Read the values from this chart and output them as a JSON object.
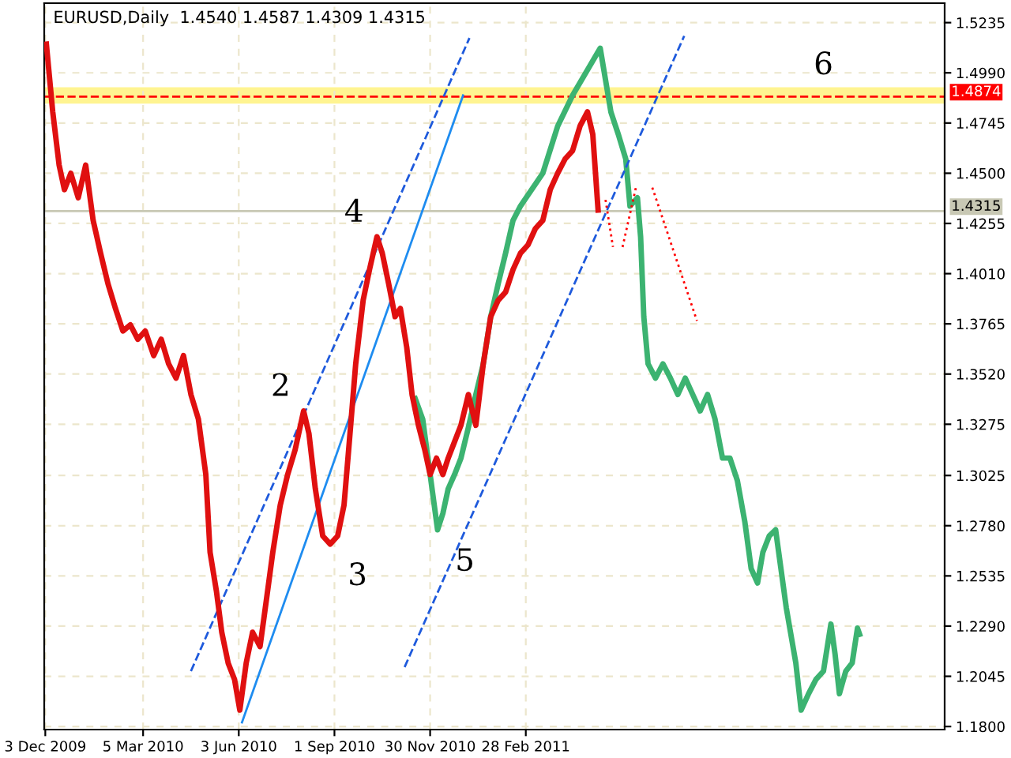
{
  "chart_data": {
    "type": "line",
    "title": "EURUSD,Daily  1.4540 1.4587 1.4309 1.4315",
    "series": [
      {
        "color": "#e01010",
        "line_style": "solid",
        "x": [
          "2009-12-04",
          "2009-12-10",
          "2009-12-16",
          "2009-12-21",
          "2009-12-27",
          "2010-01-03",
          "2010-01-10",
          "2010-01-17",
          "2010-01-24",
          "2010-01-31",
          "2010-02-07",
          "2010-02-14",
          "2010-02-21",
          "2010-02-28",
          "2010-03-07",
          "2010-03-15",
          "2010-03-22",
          "2010-03-29",
          "2010-04-05",
          "2010-04-12",
          "2010-04-19",
          "2010-04-26",
          "2010-05-03",
          "2010-05-07",
          "2010-05-13",
          "2010-05-18",
          "2010-05-24",
          "2010-05-30",
          "2010-06-04",
          "2010-06-10",
          "2010-06-16",
          "2010-06-23",
          "2010-06-28",
          "2010-07-05",
          "2010-07-12",
          "2010-07-19",
          "2010-07-26",
          "2010-08-03",
          "2010-08-08",
          "2010-08-14",
          "2010-08-21",
          "2010-08-28",
          "2010-09-04",
          "2010-09-10",
          "2010-09-15",
          "2010-09-21",
          "2010-09-28",
          "2010-10-04",
          "2010-10-11",
          "2010-10-16",
          "2010-10-22",
          "2010-10-28",
          "2010-11-02",
          "2010-11-08",
          "2010-11-13",
          "2010-11-19",
          "2010-11-25",
          "2010-11-30",
          "2010-12-06",
          "2010-12-12",
          "2010-12-17",
          "2010-12-23",
          "2010-12-29",
          "2011-01-05",
          "2011-01-12",
          "2011-01-19",
          "2011-01-26",
          "2011-02-02",
          "2011-02-09",
          "2011-02-16",
          "2011-02-23",
          "2011-03-02",
          "2011-03-09",
          "2011-03-16",
          "2011-03-23",
          "2011-03-30",
          "2011-04-06",
          "2011-04-13",
          "2011-04-20",
          "2011-04-27",
          "2011-05-02",
          "2011-05-07"
        ],
        "values": [
          1.513,
          1.48,
          1.454,
          1.442,
          1.45,
          1.438,
          1.454,
          1.427,
          1.411,
          1.396,
          1.384,
          1.373,
          1.376,
          1.369,
          1.373,
          1.361,
          1.369,
          1.357,
          1.35,
          1.361,
          1.342,
          1.33,
          1.303,
          1.265,
          1.246,
          1.226,
          1.211,
          1.203,
          1.188,
          1.211,
          1.226,
          1.219,
          1.238,
          1.265,
          1.288,
          1.303,
          1.315,
          1.334,
          1.323,
          1.296,
          1.273,
          1.269,
          1.273,
          1.288,
          1.319,
          1.357,
          1.388,
          1.403,
          1.419,
          1.411,
          1.396,
          1.38,
          1.384,
          1.365,
          1.342,
          1.327,
          1.315,
          1.303,
          1.311,
          1.303,
          1.311,
          1.319,
          1.327,
          1.342,
          1.327,
          1.357,
          1.38,
          1.388,
          1.392,
          1.403,
          1.411,
          1.415,
          1.423,
          1.427,
          1.442,
          1.45,
          1.457,
          1.461,
          1.473,
          1.48,
          1.469,
          1.432
        ]
      },
      {
        "color": "#3cb371",
        "line_style": "solid",
        "x": [
          "2010-11-16",
          "2010-11-23",
          "2010-11-30",
          "2010-12-07",
          "2010-12-12",
          "2010-12-17",
          "2010-12-23",
          "2010-12-29",
          "2011-01-05",
          "2011-01-12",
          "2011-01-19",
          "2011-01-26",
          "2011-02-02",
          "2011-02-09",
          "2011-02-16",
          "2011-02-23",
          "2011-03-16",
          "2011-03-30",
          "2011-04-13",
          "2011-05-09",
          "2011-05-19",
          "2011-05-26",
          "2011-06-02",
          "2011-06-06",
          "2011-06-13",
          "2011-06-16",
          "2011-06-19",
          "2011-06-23",
          "2011-06-30",
          "2011-07-07",
          "2011-07-14",
          "2011-07-21",
          "2011-07-28",
          "2011-08-04",
          "2011-08-11",
          "2011-08-18",
          "2011-08-25",
          "2011-09-01",
          "2011-09-08",
          "2011-09-15",
          "2011-09-22",
          "2011-09-28",
          "2011-10-04",
          "2011-10-09",
          "2011-10-15",
          "2011-10-21",
          "2011-10-26",
          "2011-10-31",
          "2011-11-04",
          "2011-11-09",
          "2011-11-14",
          "2011-11-21",
          "2011-11-28",
          "2011-12-05",
          "2011-12-12",
          "2011-12-16",
          "2011-12-20",
          "2011-12-26",
          "2012-01-01",
          "2012-01-06",
          "2012-01-08"
        ],
        "values": [
          1.34,
          1.33,
          1.303,
          1.276,
          1.284,
          1.296,
          1.303,
          1.311,
          1.326,
          1.342,
          1.357,
          1.38,
          1.396,
          1.411,
          1.427,
          1.434,
          1.45,
          1.473,
          1.488,
          1.511,
          1.48,
          1.469,
          1.457,
          1.434,
          1.438,
          1.419,
          1.38,
          1.357,
          1.35,
          1.357,
          1.35,
          1.342,
          1.35,
          1.342,
          1.334,
          1.342,
          1.33,
          1.311,
          1.311,
          1.3,
          1.28,
          1.257,
          1.25,
          1.265,
          1.273,
          1.276,
          1.257,
          1.238,
          1.226,
          1.211,
          1.188,
          1.196,
          1.203,
          1.207,
          1.23,
          1.215,
          1.196,
          1.207,
          1.211,
          1.228,
          1.225
        ]
      },
      {
        "color": "#1e5adc",
        "line_style": "dashed",
        "x": [
          "2010-04-19",
          "2011-01-06"
        ],
        "values": [
          1.207,
          1.516
        ]
      },
      {
        "color": "#1e8cf0",
        "line_style": "solid",
        "x": [
          "2010-06-06",
          "2010-12-31"
        ],
        "values": [
          1.182,
          1.488
        ]
      },
      {
        "color": "#1e5adc",
        "line_style": "dashed",
        "x": [
          "2010-11-06",
          "2011-07-27"
        ],
        "values": [
          1.209,
          1.517
        ]
      },
      {
        "color": "#ff0000",
        "line_style": "dotted",
        "x": [
          "2011-05-14",
          "2011-05-21"
        ],
        "values": [
          1.437,
          1.414
        ]
      },
      {
        "color": "#ff0000",
        "line_style": "dotted",
        "x": [
          "2011-05-30",
          "2011-06-12"
        ],
        "values": [
          1.414,
          1.444
        ]
      },
      {
        "color": "#ff0000",
        "line_style": "dotted",
        "x": [
          "2011-06-27",
          "2011-08-08"
        ],
        "values": [
          1.443,
          1.378
        ]
      }
    ],
    "xlim": [
      "2009-12-02",
      "2012-03-28"
    ],
    "xticks": [
      {
        "value": "2009-12-03",
        "label": "3 Dec 2009"
      },
      {
        "value": "2010-03-05",
        "label": "5 Mar 2010"
      },
      {
        "value": "2010-06-03",
        "label": "3 Jun 2010"
      },
      {
        "value": "2010-09-01",
        "label": "1 Sep 2010"
      },
      {
        "value": "2010-11-30",
        "label": "30 Nov 2010"
      },
      {
        "value": "2011-02-28",
        "label": "28 Feb 2011"
      }
    ],
    "ylim": [
      1.1785,
      1.533
    ],
    "yticks": [
      {
        "value": 1.18,
        "label": "1.1800"
      },
      {
        "value": 1.2045,
        "label": "1.2045"
      },
      {
        "value": 1.229,
        "label": "1.2290"
      },
      {
        "value": 1.2535,
        "label": "1.2535"
      },
      {
        "value": 1.278,
        "label": "1.2780"
      },
      {
        "value": 1.3025,
        "label": "1.3025"
      },
      {
        "value": 1.3275,
        "label": "1.3275"
      },
      {
        "value": 1.352,
        "label": "1.3520"
      },
      {
        "value": 1.3765,
        "label": "1.3765"
      },
      {
        "value": 1.401,
        "label": "1.4010"
      },
      {
        "value": 1.4255,
        "label": "1.4255"
      },
      {
        "value": 1.45,
        "label": "1.4500"
      },
      {
        "value": 1.4745,
        "label": "1.4745"
      },
      {
        "value": 1.499,
        "label": "1.4990"
      },
      {
        "value": 1.5235,
        "label": "1.5235"
      }
    ],
    "ref_lines": [
      {
        "axis": "y",
        "value": 1.4874,
        "label": "1.4874",
        "color": "#ff0000",
        "line_style": "dashed"
      },
      {
        "axis": "y",
        "value": 1.4315,
        "label": "1.4315",
        "color": "#c8c8b4",
        "line_style": "solid"
      }
    ],
    "bands": [
      {
        "axis": "y",
        "from": 1.484,
        "to": 1.492,
        "color": "#fff176"
      }
    ],
    "annotations": [
      {
        "text": "2",
        "x": "2010-08-03",
        "y": 1.334
      },
      {
        "text": "3",
        "x": "2010-08-28",
        "y": 1.269
      },
      {
        "text": "4",
        "x": "2010-10-11",
        "y": 1.419
      },
      {
        "text": "5",
        "x": "2010-12-07",
        "y": 1.276
      },
      {
        "text": "6",
        "x": "2011-12-05",
        "y": 1.492
      }
    ],
    "grid": true,
    "legend": false,
    "marker": "none"
  }
}
